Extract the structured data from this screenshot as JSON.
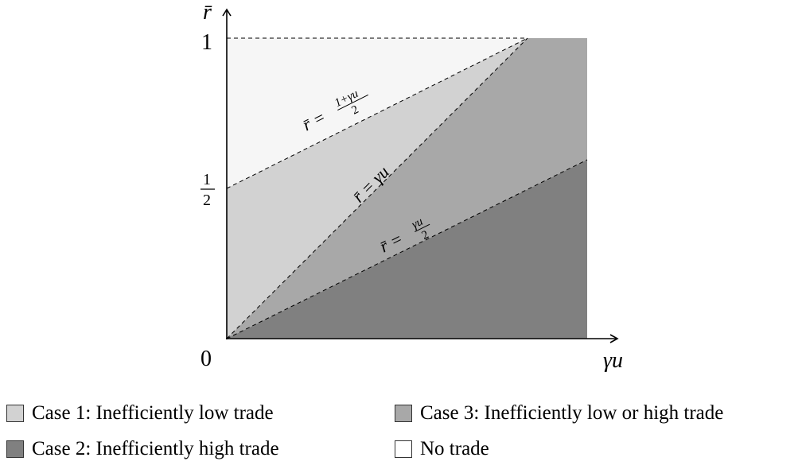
{
  "diagram": {
    "axes": {
      "x_label": "γu",
      "y_label": "r̄",
      "origin_label": "0",
      "y_tick_top": "1",
      "y_tick_half_num": "1",
      "y_tick_half_den": "2"
    },
    "lines": [
      {
        "id": "line-half-plus",
        "lhs": "r̄ =",
        "num": "1+γu",
        "den": "2"
      },
      {
        "id": "line-equal",
        "lhs": "r̄ = γu"
      },
      {
        "id": "line-half",
        "lhs": "r̄ =",
        "num": "γu",
        "den": "2"
      }
    ],
    "colors": {
      "case1": "#d2d2d2",
      "case2": "#808080",
      "case3": "#a8a8a8",
      "no_trade": "#f6f6f6"
    }
  },
  "legend": {
    "items": [
      {
        "key": "case1",
        "label": "Case 1: Inefficiently low trade"
      },
      {
        "key": "case3",
        "label": "Case 3: Inefficiently low or high trade"
      },
      {
        "key": "case2",
        "label": "Case 2: Inefficiently high trade"
      },
      {
        "key": "no_trade",
        "label": "No trade"
      }
    ]
  }
}
